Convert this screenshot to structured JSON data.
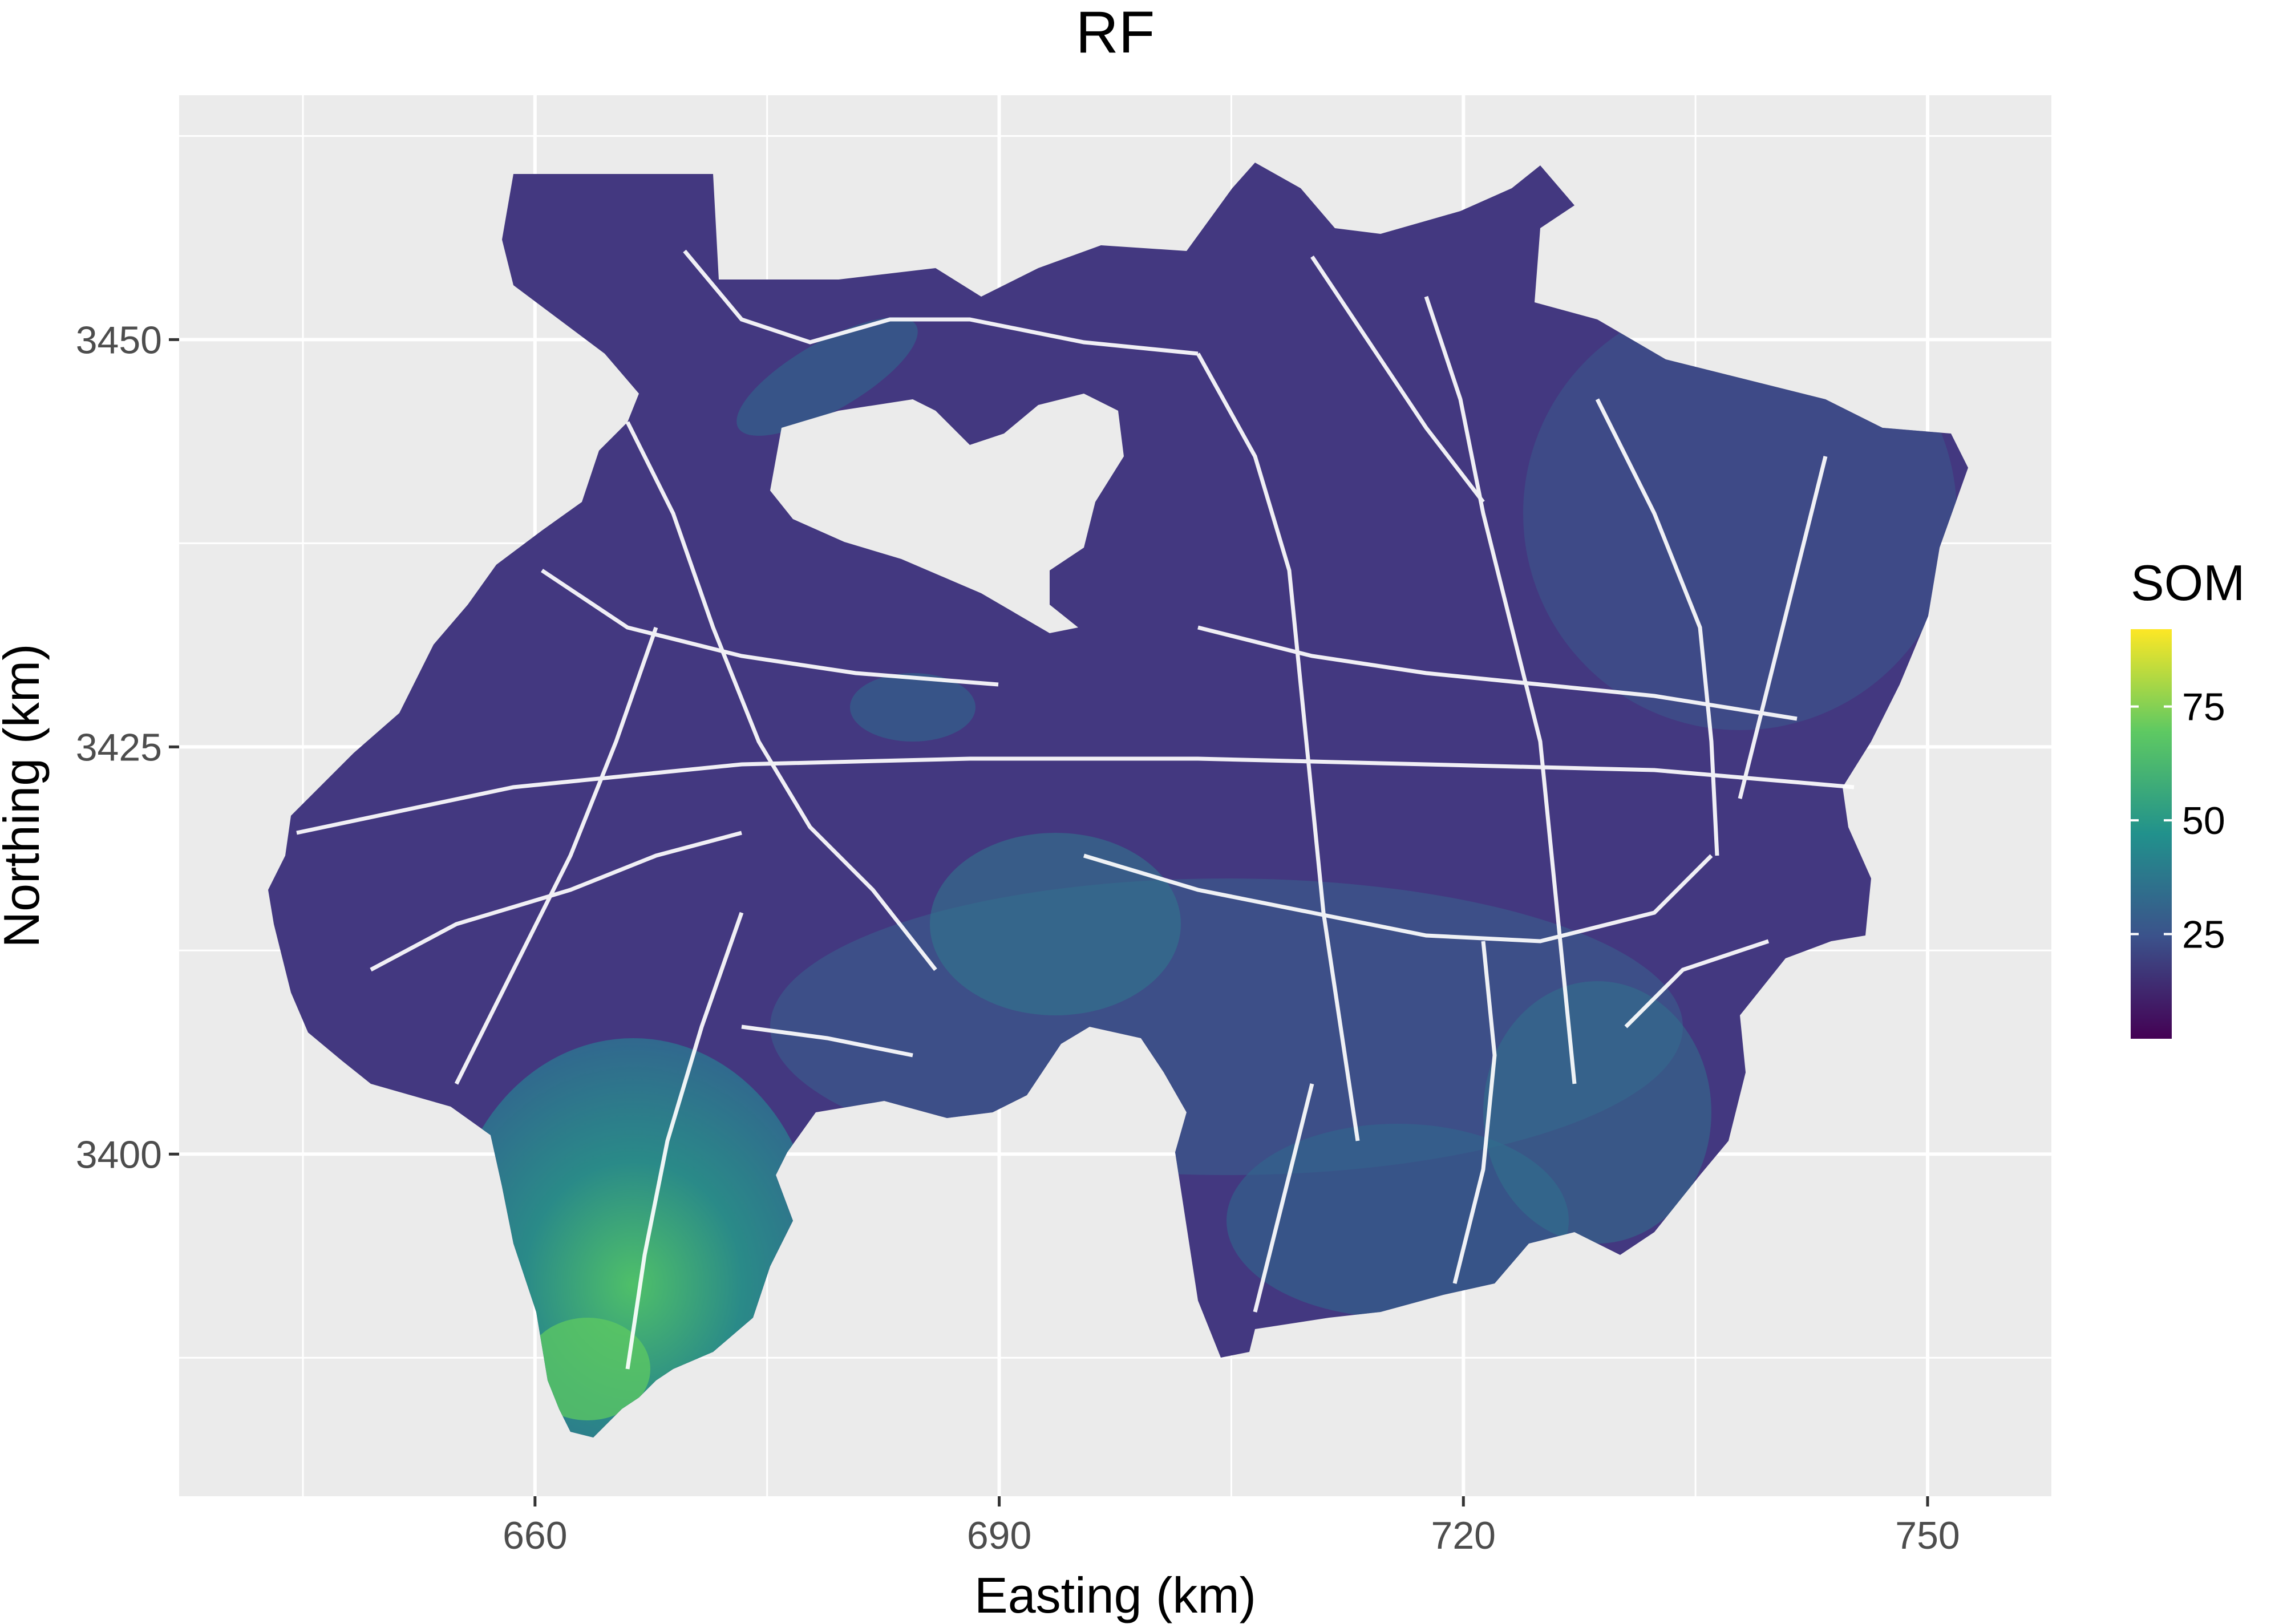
{
  "chart_data": {
    "type": "heatmap",
    "title": "RF",
    "xlabel": "Easting (km)",
    "ylabel": "Northing (km)",
    "xlim": [
      637,
      758
    ],
    "ylim": [
      3379,
      3465
    ],
    "x_ticks": [
      660,
      690,
      720,
      750
    ],
    "x_tick_labels": [
      "660",
      "690",
      "720",
      "750"
    ],
    "y_ticks": [
      3400,
      3425,
      3450
    ],
    "y_tick_labels": [
      "3400",
      "3425",
      "3450"
    ],
    "grid": true,
    "legend": {
      "title": "SOM",
      "placement": "right",
      "type": "colorbar",
      "range": [
        2,
        92
      ],
      "ticks": [
        25,
        50,
        75
      ],
      "tick_labels": [
        "25",
        "50",
        "75"
      ],
      "colormap": [
        "#440154",
        "#3b528b",
        "#21918c",
        "#5ec962",
        "#fde725"
      ]
    },
    "regions": [
      {
        "name": "",
        "predominant_som": 15
      },
      {
        "name": "",
        "predominant_som": 40
      },
      {
        "name": "",
        "predominant_som": 70
      }
    ]
  },
  "colors": {
    "panel_background": "#ebebeb",
    "grid_major": "#ffffff",
    "low_som": "#433880",
    "mid_som": "#2e6f8e",
    "high_som": "#5ec962",
    "road_network": "#ffffff"
  }
}
